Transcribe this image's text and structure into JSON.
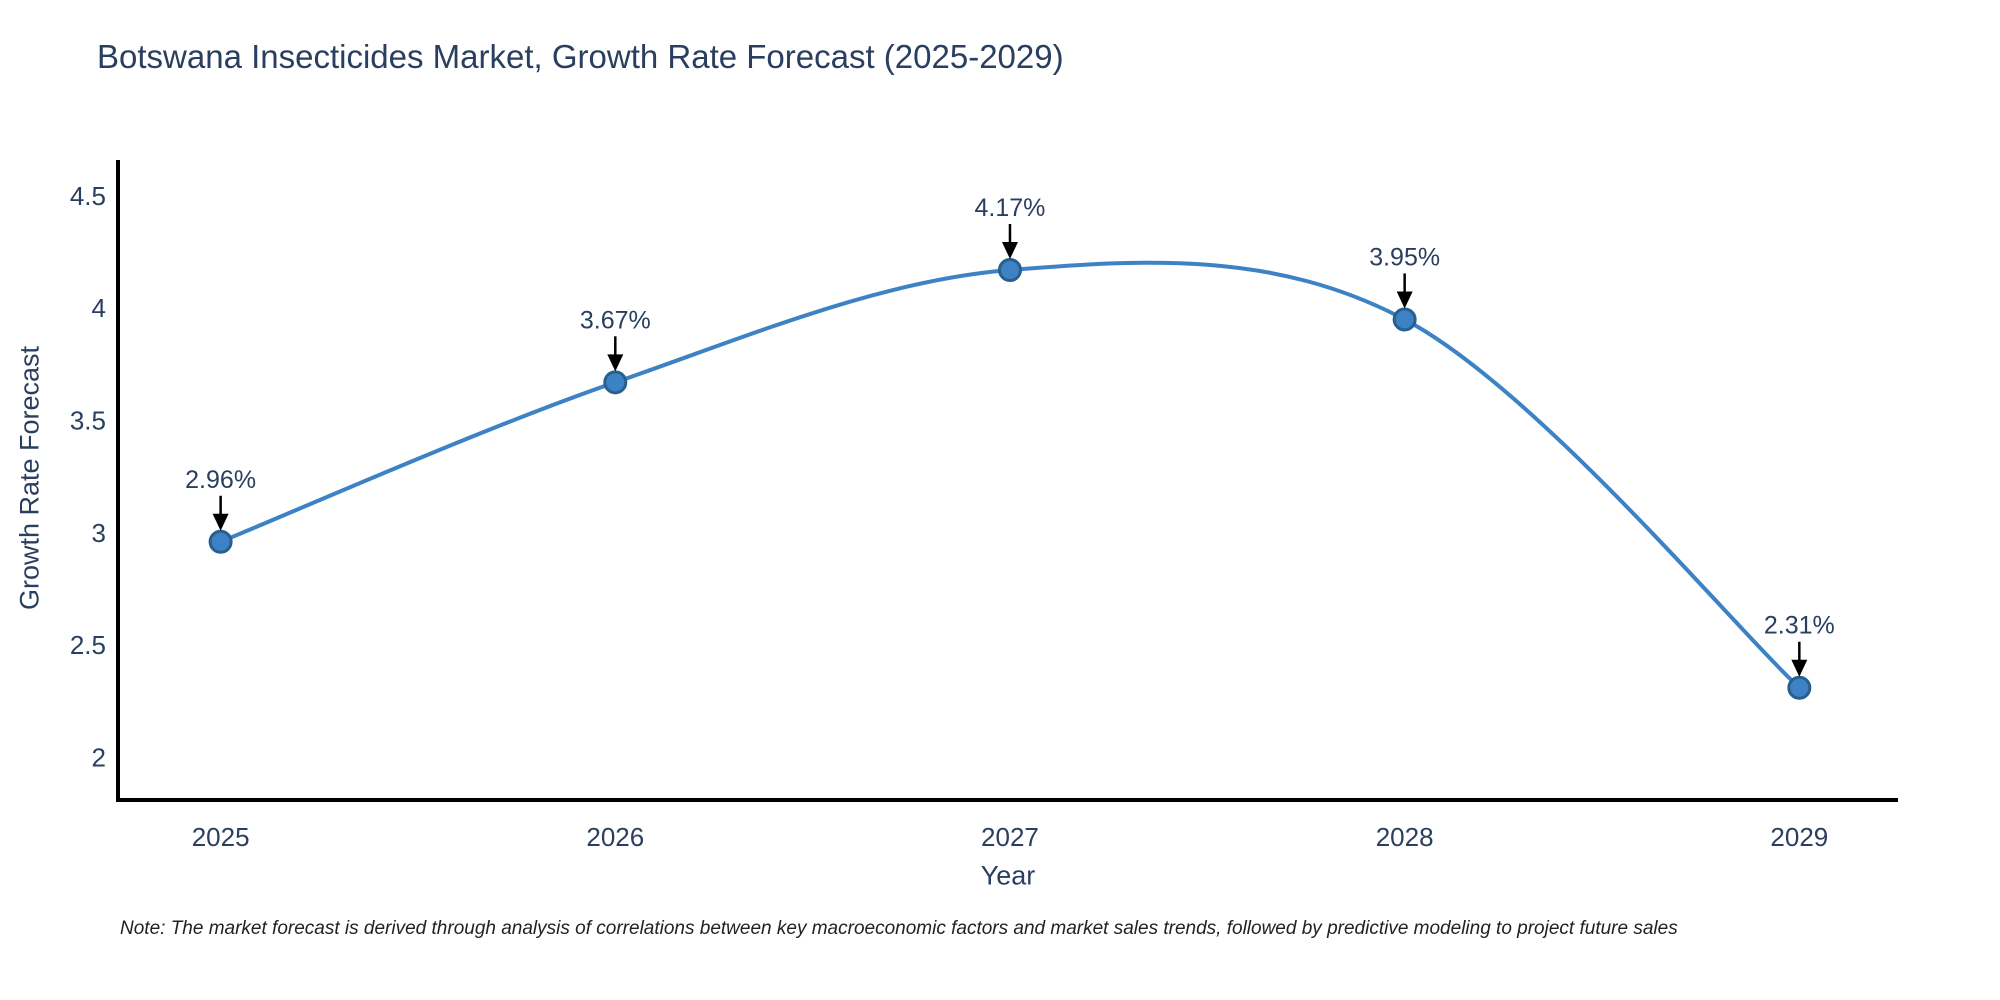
{
  "note": "Note: The market forecast is derived through analysis of correlations between key macroeconomic factors and market sales trends, followed by predictive modeling to project future sales",
  "chart_data": {
    "type": "line",
    "title": "Botswana Insecticides Market, Growth Rate Forecast (2025-2029)",
    "x": [
      2025,
      2026,
      2027,
      2028,
      2029
    ],
    "values": [
      2.96,
      3.67,
      4.17,
      3.95,
      2.31
    ],
    "point_labels": [
      "2.96%",
      "3.67%",
      "4.17%",
      "3.95%",
      "2.31%"
    ],
    "xlabel": "Year",
    "ylabel": "Growth Rate Forecast",
    "xticks": [
      2025,
      2026,
      2027,
      2028,
      2029
    ],
    "yticks": [
      2,
      2.5,
      3,
      3.5,
      4,
      4.5
    ],
    "x_range": [
      2024.74,
      2029.25
    ],
    "y_range": [
      1.81,
      4.66
    ],
    "line_shape": "spline",
    "grid": false,
    "legend": "none",
    "colors": {
      "line": "#3d82c4",
      "marker_fill": "#3d82c4",
      "marker_edge": "#27608f",
      "axis_line": "#000000",
      "tick_text": "#2a3f5f",
      "annotation_text": "#2a3f5f",
      "annotation_arrow": "#000000",
      "note_text": "#222222",
      "background": "#ffffff"
    }
  }
}
